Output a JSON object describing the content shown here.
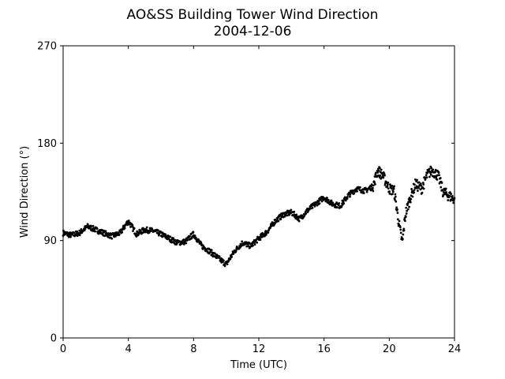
{
  "chart_data": {
    "type": "scatter",
    "title": "AO&SS Building Tower Wind Direction",
    "subtitle": "2004-12-06",
    "xlabel": "Time (UTC)",
    "ylabel": "Wind Direction (°)",
    "xlim": [
      0,
      24
    ],
    "ylim": [
      0,
      270
    ],
    "x_ticks": [
      "0",
      "4",
      "8",
      "12",
      "16",
      "20",
      "24"
    ],
    "y_ticks": [
      "0",
      "90",
      "180",
      "270"
    ],
    "grid": false,
    "legend": "none",
    "point_color": "#000000",
    "series": [
      {
        "x": [
          0,
          0.5,
          1,
          1.5,
          2,
          2.5,
          3,
          3.5,
          4,
          4.5,
          5,
          5.5,
          6,
          6.5,
          7,
          7.5,
          8,
          8.5,
          9,
          9.5,
          10,
          10.5,
          11,
          11.5,
          12,
          12.5,
          13,
          13.5,
          14,
          14.5,
          15,
          15.5,
          16,
          16.5,
          17,
          17.5,
          18,
          18.5,
          19,
          19.3,
          19.6,
          20,
          20.3,
          20.6,
          20.8,
          21,
          21.3,
          21.6,
          22,
          22.3,
          22.6,
          23,
          23.3,
          23.6,
          24
        ],
        "y": [
          97,
          95,
          97,
          103,
          100,
          97,
          94,
          97,
          108,
          96,
          100,
          99,
          96,
          92,
          88,
          89,
          96,
          85,
          80,
          74,
          68,
          80,
          88,
          85,
          92,
          98,
          108,
          114,
          116,
          110,
          118,
          124,
          130,
          124,
          122,
          132,
          138,
          136,
          140,
          155,
          150,
          138,
          136,
          105,
          88,
          115,
          130,
          142,
          138,
          150,
          155,
          150,
          135,
          132,
          128
        ]
      }
    ]
  }
}
